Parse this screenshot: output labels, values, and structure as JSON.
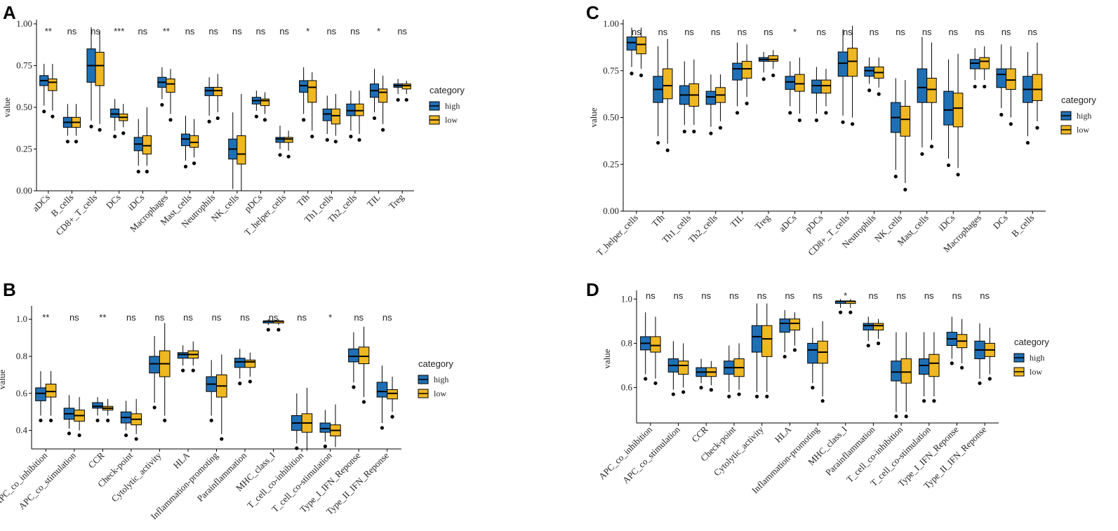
{
  "colors": {
    "high": "#1f6fb5",
    "low": "#efb722",
    "stroke": "#000000"
  },
  "chart_data": [
    {
      "panel": "A",
      "type": "boxplot",
      "ylabel": "value",
      "ylim": [
        0,
        1
      ],
      "yticks": [
        "0.00",
        "0.25",
        "0.50",
        "0.75",
        "1.00"
      ],
      "legend": {
        "title": "category",
        "entries": [
          "high",
          "low"
        ]
      },
      "categories": [
        "aDCs",
        "B_cells",
        "CD8+_T_cells",
        "DCs",
        "iDCs",
        "Macrophages",
        "Mast_cells",
        "Neutrophils",
        "NK_cells",
        "pDCs",
        "T_helper_cells",
        "Tfh",
        "Th1_cells",
        "Th2_cells",
        "TIL",
        "Treg"
      ],
      "significance": [
        "**",
        "ns",
        "ns",
        "***",
        "ns",
        "**",
        "ns",
        "ns",
        "ns",
        "ns",
        "ns",
        "*",
        "ns",
        "ns",
        "*",
        "ns"
      ],
      "series": [
        {
          "name": "high",
          "boxes": [
            [
              0.51,
              0.63,
              0.66,
              0.69,
              0.76
            ],
            [
              0.33,
              0.38,
              0.41,
              0.44,
              0.52
            ],
            [
              0.42,
              0.65,
              0.75,
              0.85,
              0.98
            ],
            [
              0.36,
              0.44,
              0.46,
              0.49,
              0.55
            ],
            [
              0.15,
              0.24,
              0.28,
              0.32,
              0.43
            ],
            [
              0.55,
              0.62,
              0.65,
              0.68,
              0.74
            ],
            [
              0.18,
              0.27,
              0.31,
              0.34,
              0.45
            ],
            [
              0.45,
              0.57,
              0.6,
              0.62,
              0.68
            ],
            [
              0.01,
              0.19,
              0.25,
              0.31,
              0.47
            ],
            [
              0.48,
              0.52,
              0.54,
              0.56,
              0.6
            ],
            [
              0.25,
              0.29,
              0.31,
              0.32,
              0.39
            ],
            [
              0.46,
              0.59,
              0.63,
              0.66,
              0.74
            ],
            [
              0.34,
              0.42,
              0.46,
              0.49,
              0.57
            ],
            [
              0.36,
              0.45,
              0.48,
              0.52,
              0.6
            ],
            [
              0.47,
              0.56,
              0.6,
              0.64,
              0.73
            ],
            [
              0.58,
              0.62,
              0.63,
              0.64,
              0.67
            ]
          ]
        },
        {
          "name": "low",
          "boxes": [
            [
              0.48,
              0.6,
              0.65,
              0.67,
              0.76
            ],
            [
              0.33,
              0.38,
              0.41,
              0.44,
              0.52
            ],
            [
              0.4,
              0.63,
              0.75,
              0.83,
              0.96
            ],
            [
              0.38,
              0.42,
              0.44,
              0.46,
              0.52
            ],
            [
              0.15,
              0.22,
              0.27,
              0.33,
              0.5
            ],
            [
              0.46,
              0.59,
              0.64,
              0.67,
              0.73
            ],
            [
              0.2,
              0.26,
              0.29,
              0.33,
              0.43
            ],
            [
              0.47,
              0.57,
              0.6,
              0.62,
              0.7
            ],
            [
              0.0,
              0.16,
              0.22,
              0.33,
              0.58
            ],
            [
              0.46,
              0.51,
              0.54,
              0.55,
              0.59
            ],
            [
              0.24,
              0.29,
              0.31,
              0.32,
              0.36
            ],
            [
              0.36,
              0.53,
              0.62,
              0.66,
              0.71
            ],
            [
              0.33,
              0.4,
              0.45,
              0.49,
              0.58
            ],
            [
              0.34,
              0.45,
              0.48,
              0.52,
              0.6
            ],
            [
              0.4,
              0.53,
              0.59,
              0.61,
              0.69
            ],
            [
              0.58,
              0.61,
              0.63,
              0.64,
              0.66
            ]
          ]
        }
      ]
    },
    {
      "panel": "B",
      "type": "boxplot",
      "ylabel": "value",
      "ylim": [
        0.3,
        1.05
      ],
      "yticks": [
        "0.4",
        "0.6",
        "0.8",
        "1.0"
      ],
      "legend": {
        "title": "category",
        "entries": [
          "high",
          "low"
        ]
      },
      "categories": [
        "APC_co_inhibition",
        "APC_co_stimulation",
        "CCR",
        "Check-point",
        "Cytolytic_activity",
        "HLA",
        "Inflammation-promoting",
        "Parainflammation",
        "MHC_class_I",
        "T_cell_co-inhibition",
        "T_cell_co-stimulation",
        "Type_I_IFN_Reponse",
        "Type_II_IFN_Reponse"
      ],
      "significance": [
        "**",
        "ns",
        "**",
        "ns",
        "ns",
        "ns",
        "ns",
        "ns",
        "ns",
        "ns",
        "*",
        "ns",
        "ns"
      ],
      "series": [
        {
          "name": "high",
          "boxes": [
            [
              0.48,
              0.56,
              0.6,
              0.63,
              0.72
            ],
            [
              0.41,
              0.46,
              0.49,
              0.52,
              0.59
            ],
            [
              0.48,
              0.52,
              0.53,
              0.55,
              0.58
            ],
            [
              0.4,
              0.44,
              0.47,
              0.5,
              0.56
            ],
            [
              0.55,
              0.71,
              0.76,
              0.8,
              0.91
            ],
            [
              0.75,
              0.79,
              0.81,
              0.82,
              0.86
            ],
            [
              0.48,
              0.61,
              0.65,
              0.69,
              0.78
            ],
            [
              0.68,
              0.74,
              0.77,
              0.79,
              0.84
            ],
            [
              0.97,
              0.98,
              0.99,
              0.99,
              1.0
            ],
            [
              0.33,
              0.4,
              0.44,
              0.48,
              0.6
            ],
            [
              0.34,
              0.39,
              0.41,
              0.44,
              0.51
            ],
            [
              0.66,
              0.77,
              0.8,
              0.84,
              0.93
            ],
            [
              0.44,
              0.58,
              0.61,
              0.66,
              0.75
            ]
          ]
        },
        {
          "name": "low",
          "boxes": [
            [
              0.48,
              0.58,
              0.61,
              0.65,
              0.72
            ],
            [
              0.4,
              0.45,
              0.48,
              0.51,
              0.58
            ],
            [
              0.48,
              0.51,
              0.52,
              0.53,
              0.57
            ],
            [
              0.38,
              0.43,
              0.46,
              0.49,
              0.57
            ],
            [
              0.48,
              0.69,
              0.76,
              0.83,
              0.98
            ],
            [
              0.75,
              0.79,
              0.81,
              0.83,
              0.88
            ],
            [
              0.38,
              0.58,
              0.64,
              0.7,
              0.81
            ],
            [
              0.69,
              0.74,
              0.77,
              0.78,
              0.82
            ],
            [
              0.97,
              0.98,
              0.99,
              0.99,
              1.0
            ],
            [
              0.29,
              0.39,
              0.44,
              0.49,
              0.63
            ],
            [
              0.31,
              0.37,
              0.4,
              0.43,
              0.54
            ],
            [
              0.58,
              0.76,
              0.8,
              0.85,
              0.96
            ],
            [
              0.5,
              0.57,
              0.6,
              0.62,
              0.69
            ]
          ]
        }
      ]
    },
    {
      "panel": "C",
      "type": "boxplot",
      "ylabel": "value",
      "ylim": [
        0,
        1
      ],
      "yticks": [
        "0.00",
        "0.25",
        "0.50",
        "0.75",
        "1.00"
      ],
      "legend": {
        "title": "category",
        "entries": [
          "high",
          "low"
        ]
      },
      "categories": [
        "T_helper_cells",
        "Tfh",
        "Th1_cells",
        "Th2_cells",
        "TIL",
        "Treg",
        "aDCs",
        "pDCs",
        "CD8+_T_cells",
        "Neutrophils",
        "NK_cells",
        "Mast_cells",
        "iDCs",
        "Macrophages",
        "DCs",
        "B_cells"
      ],
      "significance": [
        "ns",
        "ns",
        "ns",
        "ns",
        "ns",
        "ns",
        "*",
        "ns",
        "ns",
        "ns",
        "ns",
        "ns",
        "ns",
        "ns",
        "ns",
        "ns"
      ],
      "series": [
        {
          "name": "high",
          "boxes": [
            [
              0.77,
              0.86,
              0.9,
              0.93,
              0.98
            ],
            [
              0.4,
              0.58,
              0.65,
              0.72,
              0.88
            ],
            [
              0.46,
              0.57,
              0.62,
              0.67,
              0.8
            ],
            [
              0.45,
              0.57,
              0.61,
              0.64,
              0.73
            ],
            [
              0.56,
              0.7,
              0.76,
              0.79,
              0.9
            ],
            [
              0.74,
              0.8,
              0.81,
              0.82,
              0.85
            ],
            [
              0.56,
              0.65,
              0.69,
              0.72,
              0.8
            ],
            [
              0.52,
              0.63,
              0.67,
              0.7,
              0.77
            ],
            [
              0.51,
              0.72,
              0.79,
              0.85,
              0.97
            ],
            [
              0.68,
              0.72,
              0.75,
              0.77,
              0.82
            ],
            [
              0.22,
              0.42,
              0.5,
              0.58,
              0.71
            ],
            [
              0.34,
              0.58,
              0.66,
              0.76,
              0.93
            ],
            [
              0.28,
              0.46,
              0.54,
              0.64,
              0.81
            ],
            [
              0.7,
              0.76,
              0.79,
              0.81,
              0.87
            ],
            [
              0.55,
              0.66,
              0.73,
              0.76,
              0.89
            ],
            [
              0.4,
              0.58,
              0.65,
              0.72,
              0.85
            ]
          ]
        },
        {
          "name": "low",
          "boxes": [
            [
              0.76,
              0.84,
              0.89,
              0.93,
              0.98
            ],
            [
              0.36,
              0.6,
              0.67,
              0.76,
              0.92
            ],
            [
              0.46,
              0.56,
              0.62,
              0.68,
              0.81
            ],
            [
              0.48,
              0.58,
              0.62,
              0.66,
              0.73
            ],
            [
              0.61,
              0.71,
              0.76,
              0.8,
              0.89
            ],
            [
              0.76,
              0.8,
              0.81,
              0.83,
              0.86
            ],
            [
              0.52,
              0.64,
              0.68,
              0.73,
              0.82
            ],
            [
              0.56,
              0.63,
              0.67,
              0.7,
              0.76
            ],
            [
              0.5,
              0.72,
              0.8,
              0.87,
              0.99
            ],
            [
              0.66,
              0.71,
              0.74,
              0.77,
              0.82
            ],
            [
              0.15,
              0.4,
              0.49,
              0.56,
              0.7
            ],
            [
              0.38,
              0.58,
              0.65,
              0.71,
              0.9
            ],
            [
              0.23,
              0.45,
              0.55,
              0.63,
              0.84
            ],
            [
              0.7,
              0.76,
              0.8,
              0.82,
              0.88
            ],
            [
              0.5,
              0.65,
              0.7,
              0.76,
              0.88
            ],
            [
              0.48,
              0.59,
              0.65,
              0.73,
              0.9
            ]
          ]
        }
      ]
    },
    {
      "panel": "D",
      "type": "boxplot",
      "ylabel": "value",
      "ylim": [
        0.44,
        1.02
      ],
      "yticks": [
        "0.6",
        "0.8",
        "1.0"
      ],
      "legend": {
        "title": "category",
        "entries": [
          "high",
          "low"
        ]
      },
      "categories": [
        "APC_co_inhibition",
        "APC_co_stimulation",
        "CCR",
        "Check-point",
        "Cytolytic_activity",
        "HLA",
        "Inflammation-promoting",
        "MHC_class_I",
        "Parainflammation",
        "T_cell_co-inhibition",
        "T_cell_co-stimulation",
        "Type_I_IFN_Reponse",
        "Type_II_IFN_Reponse"
      ],
      "significance": [
        "ns",
        "ns",
        "ns",
        "ns",
        "ns",
        "ns",
        "ns",
        "*",
        "ns",
        "ns",
        "ns",
        "ns",
        "ns"
      ],
      "series": [
        {
          "name": "high",
          "boxes": [
            [
              0.66,
              0.77,
              0.8,
              0.83,
              0.94
            ],
            [
              0.59,
              0.67,
              0.7,
              0.73,
              0.81
            ],
            [
              0.62,
              0.65,
              0.67,
              0.69,
              0.73
            ],
            [
              0.58,
              0.66,
              0.69,
              0.72,
              0.79
            ],
            [
              0.58,
              0.76,
              0.83,
              0.88,
              0.98
            ],
            [
              0.76,
              0.85,
              0.89,
              0.91,
              0.95
            ],
            [
              0.62,
              0.71,
              0.77,
              0.8,
              0.87
            ],
            [
              0.96,
              0.98,
              0.99,
              0.99,
              1.0
            ],
            [
              0.81,
              0.86,
              0.88,
              0.89,
              0.92
            ],
            [
              0.49,
              0.63,
              0.67,
              0.72,
              0.85
            ],
            [
              0.56,
              0.66,
              0.7,
              0.73,
              0.85
            ],
            [
              0.73,
              0.79,
              0.82,
              0.85,
              0.92
            ],
            [
              0.64,
              0.73,
              0.77,
              0.81,
              0.89
            ]
          ]
        },
        {
          "name": "low",
          "boxes": [
            [
              0.64,
              0.76,
              0.79,
              0.83,
              0.92
            ],
            [
              0.6,
              0.66,
              0.7,
              0.72,
              0.8
            ],
            [
              0.61,
              0.65,
              0.67,
              0.69,
              0.72
            ],
            [
              0.59,
              0.65,
              0.69,
              0.73,
              0.8
            ],
            [
              0.58,
              0.74,
              0.82,
              0.88,
              0.98
            ],
            [
              0.79,
              0.86,
              0.89,
              0.91,
              0.94
            ],
            [
              0.56,
              0.71,
              0.76,
              0.81,
              0.9
            ],
            [
              0.96,
              0.98,
              0.99,
              0.99,
              1.0
            ],
            [
              0.82,
              0.86,
              0.88,
              0.89,
              0.91
            ],
            [
              0.49,
              0.62,
              0.67,
              0.73,
              0.85
            ],
            [
              0.56,
              0.65,
              0.71,
              0.75,
              0.85
            ],
            [
              0.71,
              0.78,
              0.81,
              0.84,
              0.91
            ],
            [
              0.66,
              0.74,
              0.77,
              0.8,
              0.87
            ]
          ]
        }
      ]
    }
  ]
}
